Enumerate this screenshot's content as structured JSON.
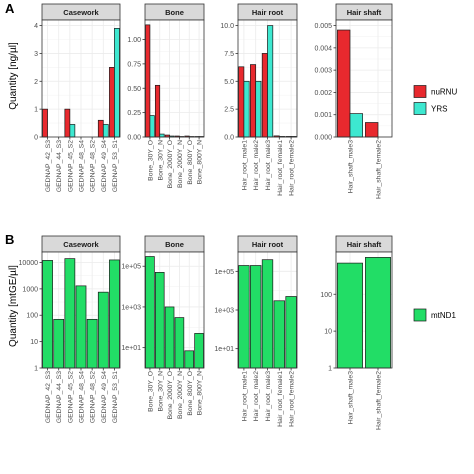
{
  "panels": [
    {
      "letter": "A",
      "ylabel": "Quantity [ng/µl]"
    },
    {
      "letter": "B",
      "ylabel": "Quantity [mtGE/µl]"
    }
  ],
  "legends": [
    {
      "items": [
        {
          "label": "nuRNU",
          "color": "#e8292e"
        },
        {
          "label": "YRS",
          "color": "#3de8d0"
        }
      ]
    },
    {
      "items": [
        {
          "label": "mtND1",
          "color": "#22dd66"
        }
      ]
    }
  ],
  "chart_data": [
    {
      "type": "bar",
      "title": "Casework",
      "categories": [
        "GEDNAP_42_S3",
        "GEDNAP_44_S3",
        "GEDNAP_45_S2",
        "GEDNAP_48_S4",
        "GEDNAP_48_S2",
        "GEDNAP_49_S4",
        "GEDNAP_53_S1"
      ],
      "series": [
        {
          "name": "nuRNU",
          "values": [
            1.0,
            0.0,
            1.0,
            0.0,
            0.0,
            0.6,
            2.5
          ]
        },
        {
          "name": "YRS",
          "values": [
            0.0,
            0.0,
            0.45,
            0.0,
            0.0,
            0.45,
            3.9
          ]
        }
      ],
      "ylim": [
        0,
        4.2
      ],
      "yticks": [
        0,
        1,
        2,
        3,
        4
      ],
      "ytick_labels": [
        "0",
        "1",
        "2",
        "3",
        "4"
      ],
      "grid": true
    },
    {
      "type": "bar",
      "title": "Bone",
      "categories": [
        "Bone_30Y_O",
        "Bone_30Y_N",
        "Bone_2000Y_O",
        "Bone_2000Y_N",
        "Bone_800Y_O",
        "Bone_800Y_N"
      ],
      "series": [
        {
          "name": "nuRNU",
          "values": [
            1.15,
            0.53,
            0.02,
            0.01,
            0.01,
            0.005
          ]
        },
        {
          "name": "YRS",
          "values": [
            0.22,
            0.03,
            0.01,
            0.005,
            0.005,
            0.005
          ]
        }
      ],
      "ylim": [
        0,
        1.2
      ],
      "yticks": [
        0,
        0.25,
        0.5,
        0.75,
        1.0
      ],
      "ytick_labels": [
        "0.00",
        "0.25",
        "0.50",
        "0.75",
        "1.00"
      ],
      "grid": true
    },
    {
      "type": "bar",
      "title": "Hair root",
      "categories": [
        "Hair_root_male1",
        "Hair_root_male2",
        "Hair_root_male3",
        "Hair_root_female1",
        "Hair_root_female2"
      ],
      "series": [
        {
          "name": "nuRNU",
          "values": [
            6.3,
            6.5,
            7.5,
            0.1,
            0.05
          ]
        },
        {
          "name": "YRS",
          "values": [
            5.0,
            5.0,
            10.0,
            0.05,
            0.05
          ]
        }
      ],
      "ylim": [
        0,
        10.5
      ],
      "yticks": [
        0,
        2.5,
        5.0,
        7.5,
        10.0
      ],
      "ytick_labels": [
        "0.0",
        "2.5",
        "5.0",
        "7.5",
        "10.0"
      ],
      "grid": true
    },
    {
      "type": "bar",
      "title": "Hair shaft",
      "categories": [
        "Hair_shaft_male3",
        "Hair_shaft_female2"
      ],
      "series": [
        {
          "name": "nuRNU",
          "values": [
            0.0048,
            0.00065
          ]
        },
        {
          "name": "YRS",
          "values": [
            0.00105,
            0.0
          ]
        }
      ],
      "ylim": [
        0,
        0.00525
      ],
      "yticks": [
        0,
        0.001,
        0.002,
        0.003,
        0.004,
        0.005
      ],
      "ytick_labels": [
        "0.000",
        "0.001",
        "0.002",
        "0.003",
        "0.004",
        "0.005"
      ],
      "grid": true
    },
    {
      "type": "bar",
      "title": "Casework",
      "log_scale": true,
      "categories": [
        "GEDNAP_42_S3",
        "GEDNAP_44_S3",
        "GEDNAP_45_S2",
        "GEDNAP_48_S4",
        "GEDNAP_48_S2",
        "GEDNAP_49_S4",
        "GEDNAP_53_S1"
      ],
      "series": [
        {
          "name": "mtND1",
          "values": [
            12000,
            70,
            14000,
            1300,
            70,
            750,
            12500
          ]
        }
      ],
      "ylim": [
        1,
        25000
      ],
      "yticks": [
        1,
        10,
        100,
        1000,
        10000
      ],
      "ytick_labels": [
        "1",
        "10",
        "100",
        "1000",
        "10000"
      ],
      "grid": true
    },
    {
      "type": "bar",
      "title": "Bone",
      "log_scale": true,
      "categories": [
        "Bone_30Y_O",
        "Bone_30Y_N",
        "Bone_2000Y_O",
        "Bone_2000Y_N",
        "Bone_800Y_O",
        "Bone_800Y_N"
      ],
      "series": [
        {
          "name": "mtND1",
          "values": [
            300000,
            50000,
            1000,
            300,
            7,
            50
          ]
        }
      ],
      "ylim": [
        1,
        500000
      ],
      "yticks": [
        10,
        1000,
        100000
      ],
      "ytick_labels": [
        "1e+01",
        "1e+03",
        "1e+05"
      ],
      "grid": true
    },
    {
      "type": "bar",
      "title": "Hair root",
      "log_scale": true,
      "categories": [
        "Hair_root_male1",
        "Hair_root_male2",
        "Hair_root_male3",
        "Hair_root_female1",
        "Hair_root_female2"
      ],
      "series": [
        {
          "name": "mtND1",
          "values": [
            200000,
            200000,
            400000,
            3000,
            5000
          ]
        }
      ],
      "ylim": [
        1,
        1000000
      ],
      "yticks": [
        10,
        1000,
        100000
      ],
      "ytick_labels": [
        "1e+01",
        "1e+03",
        "1e+05"
      ],
      "grid": true
    },
    {
      "type": "bar",
      "title": "Hair shaft",
      "log_scale": true,
      "categories": [
        "Hair_shaft_male3",
        "Hair_shaft_female2"
      ],
      "series": [
        {
          "name": "mtND1",
          "values": [
            700,
            1000
          ]
        }
      ],
      "ylim": [
        1,
        1400
      ],
      "yticks": [
        1,
        10,
        100
      ],
      "ytick_labels": [
        "1",
        "10",
        "100"
      ],
      "grid": true
    }
  ]
}
